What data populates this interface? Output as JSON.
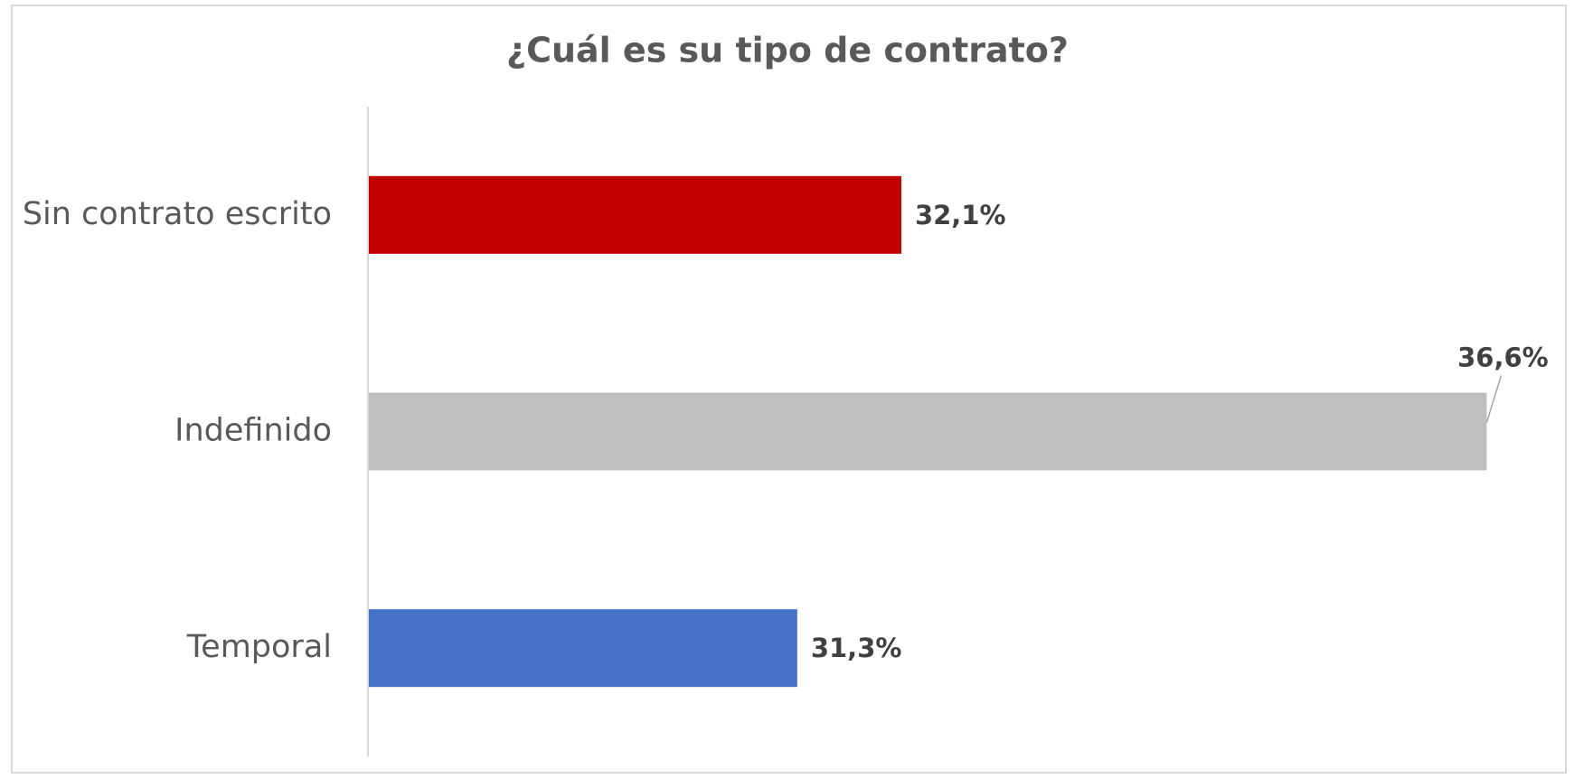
{
  "chart_data": {
    "type": "bar",
    "orientation": "horizontal",
    "title": "¿Cuál es su tipo de contrato?",
    "categories": [
      "Sin contrato escrito",
      "Indefinido",
      "Temporal"
    ],
    "values": [
      32.1,
      36.6,
      31.3
    ],
    "value_labels": [
      "32,1%",
      "36,6%",
      "31,3%"
    ],
    "colors": [
      "#c00000",
      "#bfbfbf",
      "#4472c4"
    ],
    "xlim": [
      28,
      37
    ]
  }
}
